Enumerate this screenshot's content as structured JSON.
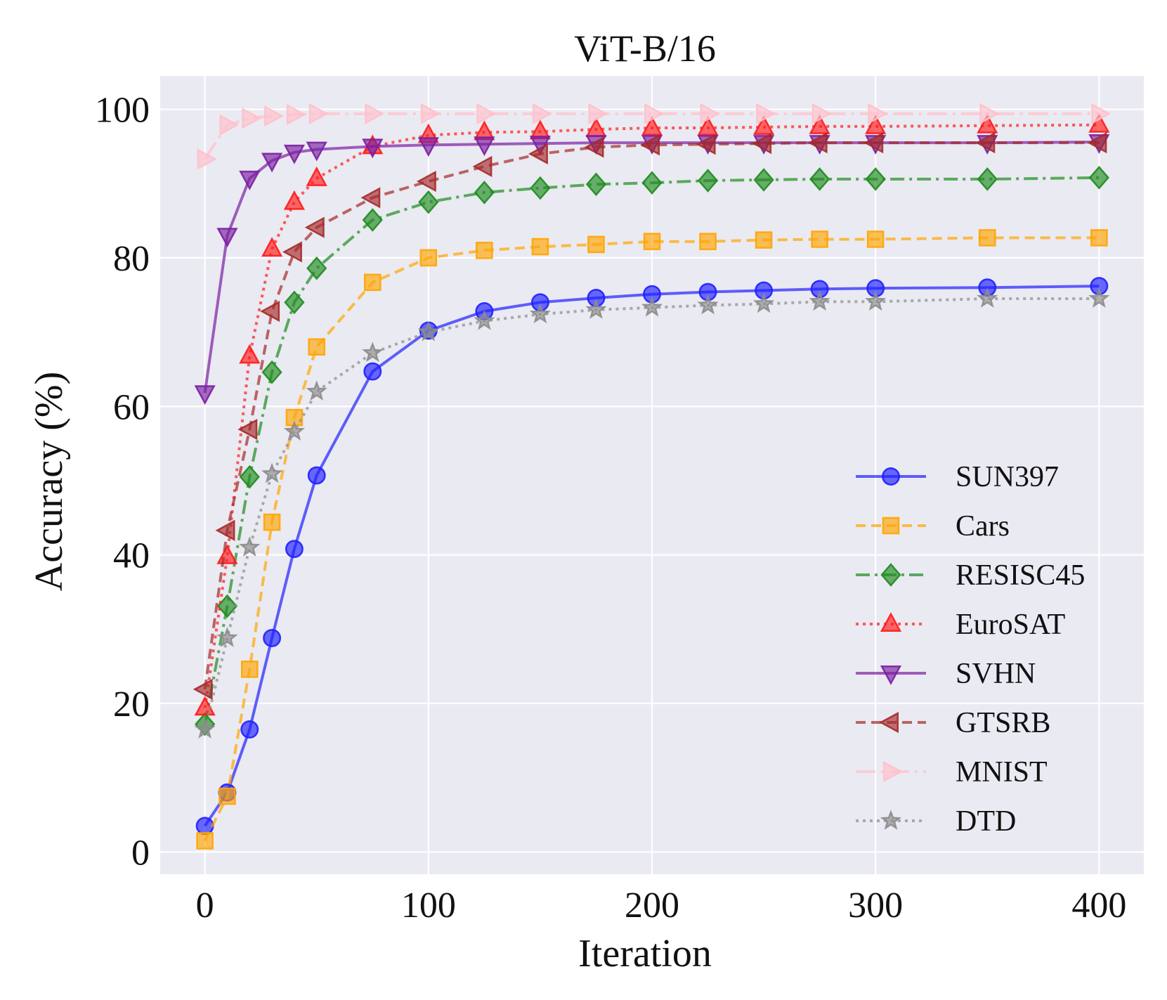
{
  "chart_data": {
    "type": "line",
    "title": "ViT-B/16",
    "xlabel": "Iteration",
    "ylabel": "Accuracy (%)",
    "xlim": [
      -20,
      420
    ],
    "ylim": [
      -3,
      104.5
    ],
    "xticks": [
      0,
      100,
      200,
      300,
      400
    ],
    "yticks": [
      0,
      20,
      40,
      60,
      80,
      100
    ],
    "grid": true,
    "legend_position": "center-right",
    "x": [
      0,
      10,
      20,
      30,
      40,
      50,
      75,
      100,
      125,
      150,
      175,
      200,
      225,
      250,
      275,
      300,
      350,
      400
    ],
    "series": [
      {
        "name": "SUN397",
        "color": "#1f1fff",
        "marker": "circle",
        "dash": "solid",
        "values": [
          3.5,
          8.0,
          16.5,
          28.8,
          40.8,
          50.7,
          64.7,
          70.2,
          72.8,
          74.0,
          74.6,
          75.1,
          75.4,
          75.6,
          75.8,
          75.9,
          76.0,
          76.2
        ]
      },
      {
        "name": "Cars",
        "color": "#ffa500",
        "marker": "square",
        "dash": "dashed",
        "values": [
          1.5,
          7.5,
          24.6,
          44.4,
          58.5,
          68.0,
          76.7,
          80.0,
          81.0,
          81.5,
          81.8,
          82.2,
          82.2,
          82.4,
          82.5,
          82.5,
          82.7,
          82.7
        ]
      },
      {
        "name": "RESISC45",
        "color": "#1e8c1e",
        "marker": "diamond",
        "dash": "dashdot",
        "values": [
          17.2,
          33.1,
          50.5,
          64.6,
          74.0,
          78.6,
          85.1,
          87.5,
          88.8,
          89.4,
          89.9,
          90.1,
          90.4,
          90.5,
          90.6,
          90.6,
          90.6,
          90.8
        ]
      },
      {
        "name": "EuroSAT",
        "color": "#ff1a1a",
        "marker": "triangle-up",
        "dash": "dotted",
        "values": [
          19.4,
          39.8,
          66.8,
          81.2,
          87.5,
          90.7,
          95.0,
          96.5,
          96.9,
          97.0,
          97.3,
          97.5,
          97.5,
          97.6,
          97.7,
          97.7,
          97.8,
          97.9
        ]
      },
      {
        "name": "SVHN",
        "color": "#7b1fa2",
        "marker": "triangle-down",
        "dash": "solid",
        "values": [
          61.8,
          83.0,
          90.7,
          93.1,
          94.2,
          94.6,
          95.0,
          95.2,
          95.3,
          95.4,
          95.5,
          95.5,
          95.5,
          95.5,
          95.5,
          95.5,
          95.5,
          95.6
        ]
      },
      {
        "name": "GTSRB",
        "color": "#a52a2a",
        "marker": "triangle-left",
        "dash": "dashed",
        "values": [
          21.9,
          43.3,
          56.9,
          72.8,
          80.8,
          84.1,
          88.1,
          90.3,
          92.3,
          94.0,
          94.9,
          95.2,
          95.3,
          95.4,
          95.5,
          95.5,
          95.5,
          95.5
        ]
      },
      {
        "name": "MNIST",
        "color": "#ffc0cb",
        "marker": "triangle-right",
        "dash": "longdashdot",
        "values": [
          93.3,
          97.9,
          98.8,
          99.1,
          99.3,
          99.4,
          99.4,
          99.4,
          99.4,
          99.4,
          99.4,
          99.4,
          99.4,
          99.4,
          99.4,
          99.4,
          99.4,
          99.4
        ]
      },
      {
        "name": "DTD",
        "color": "#8c8c8c",
        "marker": "star",
        "dash": "dotted",
        "values": [
          16.5,
          28.8,
          41.0,
          50.9,
          56.6,
          62.0,
          67.2,
          70.0,
          71.5,
          72.4,
          73.0,
          73.3,
          73.6,
          73.8,
          74.1,
          74.1,
          74.5,
          74.5
        ]
      }
    ]
  }
}
